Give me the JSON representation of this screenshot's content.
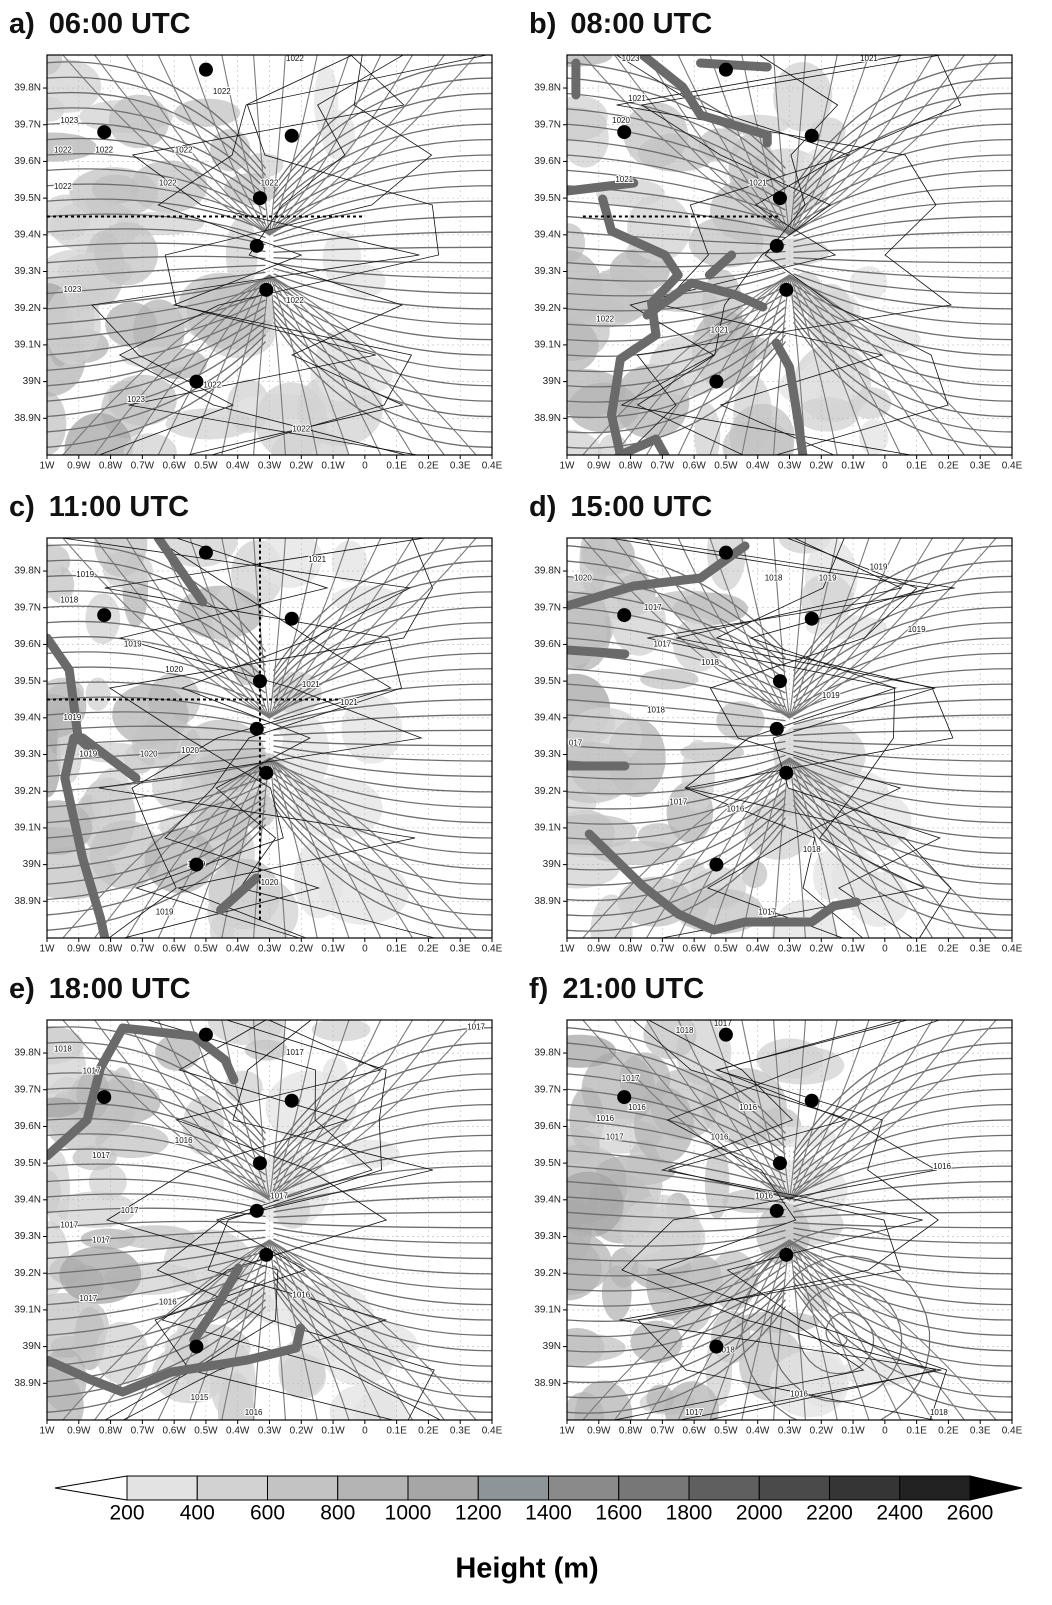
{
  "panels": [
    {
      "label": "a)",
      "time": "06:00 UTC",
      "cross_sections": [
        {
          "lat": 39.45,
          "lon1": -1,
          "lon2": 0
        }
      ],
      "contour_labels": [
        {
          "value": 1022,
          "lon": -0.22,
          "lat": 39.88
        },
        {
          "value": 1022,
          "lon": -0.45,
          "lat": 39.79
        },
        {
          "value": 1023,
          "lon": -0.93,
          "lat": 39.71
        },
        {
          "value": 1022,
          "lon": -0.95,
          "lat": 39.63
        },
        {
          "value": 1022,
          "lon": -0.82,
          "lat": 39.63
        },
        {
          "value": 1022,
          "lon": -0.57,
          "lat": 39.63
        },
        {
          "value": 1022,
          "lon": -0.95,
          "lat": 39.53
        },
        {
          "value": 1022,
          "lon": -0.62,
          "lat": 39.54
        },
        {
          "value": 1022,
          "lon": -0.3,
          "lat": 39.54
        },
        {
          "value": 1023,
          "lon": -0.92,
          "lat": 39.25
        },
        {
          "value": 1022,
          "lon": -0.22,
          "lat": 39.22
        },
        {
          "value": 1023,
          "lon": -0.72,
          "lat": 38.95
        },
        {
          "value": 1022,
          "lon": -0.48,
          "lat": 38.99
        },
        {
          "value": 1022,
          "lon": -0.2,
          "lat": 38.87
        }
      ]
    },
    {
      "label": "b)",
      "time": "08:00 UTC",
      "cross_sections": [
        {
          "lat": 39.45,
          "lon1": -0.95,
          "lon2": -0.33
        }
      ],
      "contour_labels": [
        {
          "value": 1023,
          "lon": -0.8,
          "lat": 39.88
        },
        {
          "value": 1021,
          "lon": -0.78,
          "lat": 39.77
        },
        {
          "value": 1020,
          "lon": -0.83,
          "lat": 39.71
        },
        {
          "value": 1021,
          "lon": -0.05,
          "lat": 39.88
        },
        {
          "value": 1021,
          "lon": -0.82,
          "lat": 39.55
        },
        {
          "value": 1021,
          "lon": -0.4,
          "lat": 39.54
        },
        {
          "value": 1022,
          "lon": -0.88,
          "lat": 39.17
        },
        {
          "value": 1021,
          "lon": -0.52,
          "lat": 39.14
        }
      ]
    },
    {
      "label": "c)",
      "time": "11:00 UTC",
      "cross_sections": [
        {
          "lat": 39.45,
          "lon1": -1,
          "lon2": -0.05
        },
        {
          "lon": -0.33,
          "lat1": 38.85,
          "lat2": 39.89
        }
      ],
      "contour_labels": [
        {
          "value": 1021,
          "lon": -0.15,
          "lat": 39.83
        },
        {
          "value": 1019,
          "lon": -0.88,
          "lat": 39.79
        },
        {
          "value": 1018,
          "lon": -0.93,
          "lat": 39.72
        },
        {
          "value": 1019,
          "lon": -0.73,
          "lat": 39.6
        },
        {
          "value": 1020,
          "lon": -0.6,
          "lat": 39.53
        },
        {
          "value": 1021,
          "lon": -0.17,
          "lat": 39.49
        },
        {
          "value": 1021,
          "lon": -0.05,
          "lat": 39.44
        },
        {
          "value": 1019,
          "lon": -0.92,
          "lat": 39.4
        },
        {
          "value": 1019,
          "lon": -0.87,
          "lat": 39.3
        },
        {
          "value": 1020,
          "lon": -0.68,
          "lat": 39.3
        },
        {
          "value": 1020,
          "lon": -0.55,
          "lat": 39.31
        },
        {
          "value": 1019,
          "lon": -0.53,
          "lat": 39.0
        },
        {
          "value": 1020,
          "lon": -0.3,
          "lat": 38.95
        },
        {
          "value": 1019,
          "lon": -0.63,
          "lat": 38.87
        }
      ]
    },
    {
      "label": "d)",
      "time": "15:00 UTC",
      "cross_sections": [],
      "contour_labels": [
        {
          "value": 1020,
          "lon": -0.95,
          "lat": 39.78
        },
        {
          "value": 1018,
          "lon": -0.35,
          "lat": 39.78
        },
        {
          "value": 1019,
          "lon": -0.18,
          "lat": 39.78
        },
        {
          "value": 1019,
          "lon": -0.02,
          "lat": 39.81
        },
        {
          "value": 1017,
          "lon": -0.73,
          "lat": 39.7
        },
        {
          "value": 1017,
          "lon": -0.7,
          "lat": 39.6
        },
        {
          "value": 1019,
          "lon": 0.1,
          "lat": 39.64
        },
        {
          "value": 1018,
          "lon": -0.55,
          "lat": 39.55
        },
        {
          "value": 1019,
          "lon": -0.17,
          "lat": 39.46
        },
        {
          "value": 1018,
          "lon": -0.72,
          "lat": 39.42
        },
        {
          "value": 1017,
          "lon": -0.98,
          "lat": 39.33
        },
        {
          "value": 1017,
          "lon": -0.65,
          "lat": 39.17
        },
        {
          "value": 1016,
          "lon": -0.47,
          "lat": 39.15
        },
        {
          "value": 1018,
          "lon": -0.23,
          "lat": 39.04
        },
        {
          "value": 1017,
          "lon": -0.37,
          "lat": 38.87
        }
      ]
    },
    {
      "label": "e)",
      "time": "18:00 UTC",
      "cross_sections": [],
      "contour_labels": [
        {
          "value": 1018,
          "lon": -0.95,
          "lat": 39.81
        },
        {
          "value": 1017,
          "lon": -0.86,
          "lat": 39.75
        },
        {
          "value": 1017,
          "lon": -0.22,
          "lat": 39.8
        },
        {
          "value": 1017,
          "lon": 0.35,
          "lat": 39.87
        },
        {
          "value": 1017,
          "lon": -0.83,
          "lat": 39.52
        },
        {
          "value": 1016,
          "lon": -0.57,
          "lat": 39.56
        },
        {
          "value": 1017,
          "lon": -0.27,
          "lat": 39.41
        },
        {
          "value": 1017,
          "lon": -0.74,
          "lat": 39.37
        },
        {
          "value": 1017,
          "lon": -0.93,
          "lat": 39.33
        },
        {
          "value": 1017,
          "lon": -0.83,
          "lat": 39.29
        },
        {
          "value": 1017,
          "lon": -0.87,
          "lat": 39.13
        },
        {
          "value": 1016,
          "lon": -0.62,
          "lat": 39.12
        },
        {
          "value": 1016,
          "lon": -0.2,
          "lat": 39.14
        },
        {
          "value": 1015,
          "lon": -0.52,
          "lat": 38.86
        },
        {
          "value": 1016,
          "lon": -0.35,
          "lat": 38.82
        }
      ]
    },
    {
      "label": "f)",
      "time": "21:00 UTC",
      "cross_sections": [],
      "contour_labels": [
        {
          "value": 1018,
          "lon": -0.63,
          "lat": 39.86
        },
        {
          "value": 1017,
          "lon": -0.51,
          "lat": 39.88
        },
        {
          "value": 1017,
          "lon": -0.8,
          "lat": 39.73
        },
        {
          "value": 1016,
          "lon": -0.78,
          "lat": 39.65
        },
        {
          "value": 1016,
          "lon": -0.88,
          "lat": 39.62
        },
        {
          "value": 1017,
          "lon": -0.85,
          "lat": 39.57
        },
        {
          "value": 1016,
          "lon": -0.43,
          "lat": 39.65
        },
        {
          "value": 1016,
          "lon": -0.52,
          "lat": 39.57
        },
        {
          "value": 1016,
          "lon": 0.18,
          "lat": 39.49
        },
        {
          "value": 1016,
          "lon": -0.38,
          "lat": 39.41
        },
        {
          "value": 1018,
          "lon": -0.5,
          "lat": 38.99
        },
        {
          "value": 1016,
          "lon": -0.27,
          "lat": 38.87
        },
        {
          "value": 1017,
          "lon": -0.6,
          "lat": 38.82
        },
        {
          "value": 1018,
          "lon": 0.17,
          "lat": 38.82
        }
      ]
    }
  ],
  "xlim": [
    -1,
    0.4
  ],
  "ylim": [
    38.8,
    39.89
  ],
  "xticks": [
    {
      "value": -1,
      "label": "1W"
    },
    {
      "value": -0.9,
      "label": "0.9W"
    },
    {
      "value": -0.8,
      "label": "0.8W"
    },
    {
      "value": -0.7,
      "label": "0.7W"
    },
    {
      "value": -0.6,
      "label": "0.6W"
    },
    {
      "value": -0.5,
      "label": "0.5W"
    },
    {
      "value": -0.4,
      "label": "0.4W"
    },
    {
      "value": -0.3,
      "label": "0.3W"
    },
    {
      "value": -0.2,
      "label": "0.2W"
    },
    {
      "value": -0.1,
      "label": "0.1W"
    },
    0,
    {
      "value": 0.1,
      "label": "0.1E"
    },
    {
      "value": 0.2,
      "label": "0.2E"
    },
    {
      "value": 0.3,
      "label": "0.3E"
    },
    {
      "value": 0.4,
      "label": "0.4E"
    }
  ],
  "yticks": [
    {
      "value": 38.9,
      "label": "38.9N"
    },
    {
      "value": 39,
      "label": "39N"
    },
    {
      "value": 39.1,
      "label": "39.1N"
    },
    {
      "value": 39.2,
      "label": "39.2N"
    },
    {
      "value": 39.3,
      "label": "39.3N"
    },
    {
      "value": 39.4,
      "label": "39.4N"
    },
    {
      "value": 39.5,
      "label": "39.5N"
    },
    {
      "value": 39.6,
      "label": "39.6N"
    },
    {
      "value": 39.7,
      "label": "39.7N"
    },
    {
      "value": 39.8,
      "label": "39.8N"
    }
  ],
  "stations": [
    {
      "lon": -0.5,
      "lat": 39.85
    },
    {
      "lon": -0.82,
      "lat": 39.68
    },
    {
      "lon": -0.23,
      "lat": 39.67
    },
    {
      "lon": -0.33,
      "lat": 39.5
    },
    {
      "lon": -0.34,
      "lat": 39.37
    },
    {
      "lon": -0.31,
      "lat": 39.25
    },
    {
      "lon": -0.53,
      "lat": 39.0
    }
  ],
  "colorbar": {
    "ticks": [
      200,
      400,
      600,
      800,
      1000,
      1200,
      1400,
      1600,
      1800,
      2000,
      2200,
      2400,
      2600
    ],
    "colors": [
      "#ffffff",
      "#e3e3e3",
      "#d2d2d2",
      "#c3c3c3",
      "#b4b4b4",
      "#a6a6a6",
      "#8e9598",
      "#8a8a8a",
      "#777777",
      "#5f5f5f",
      "#4a4a4a",
      "#353535",
      "#222222",
      "#000000"
    ],
    "label": "Height (m)"
  }
}
